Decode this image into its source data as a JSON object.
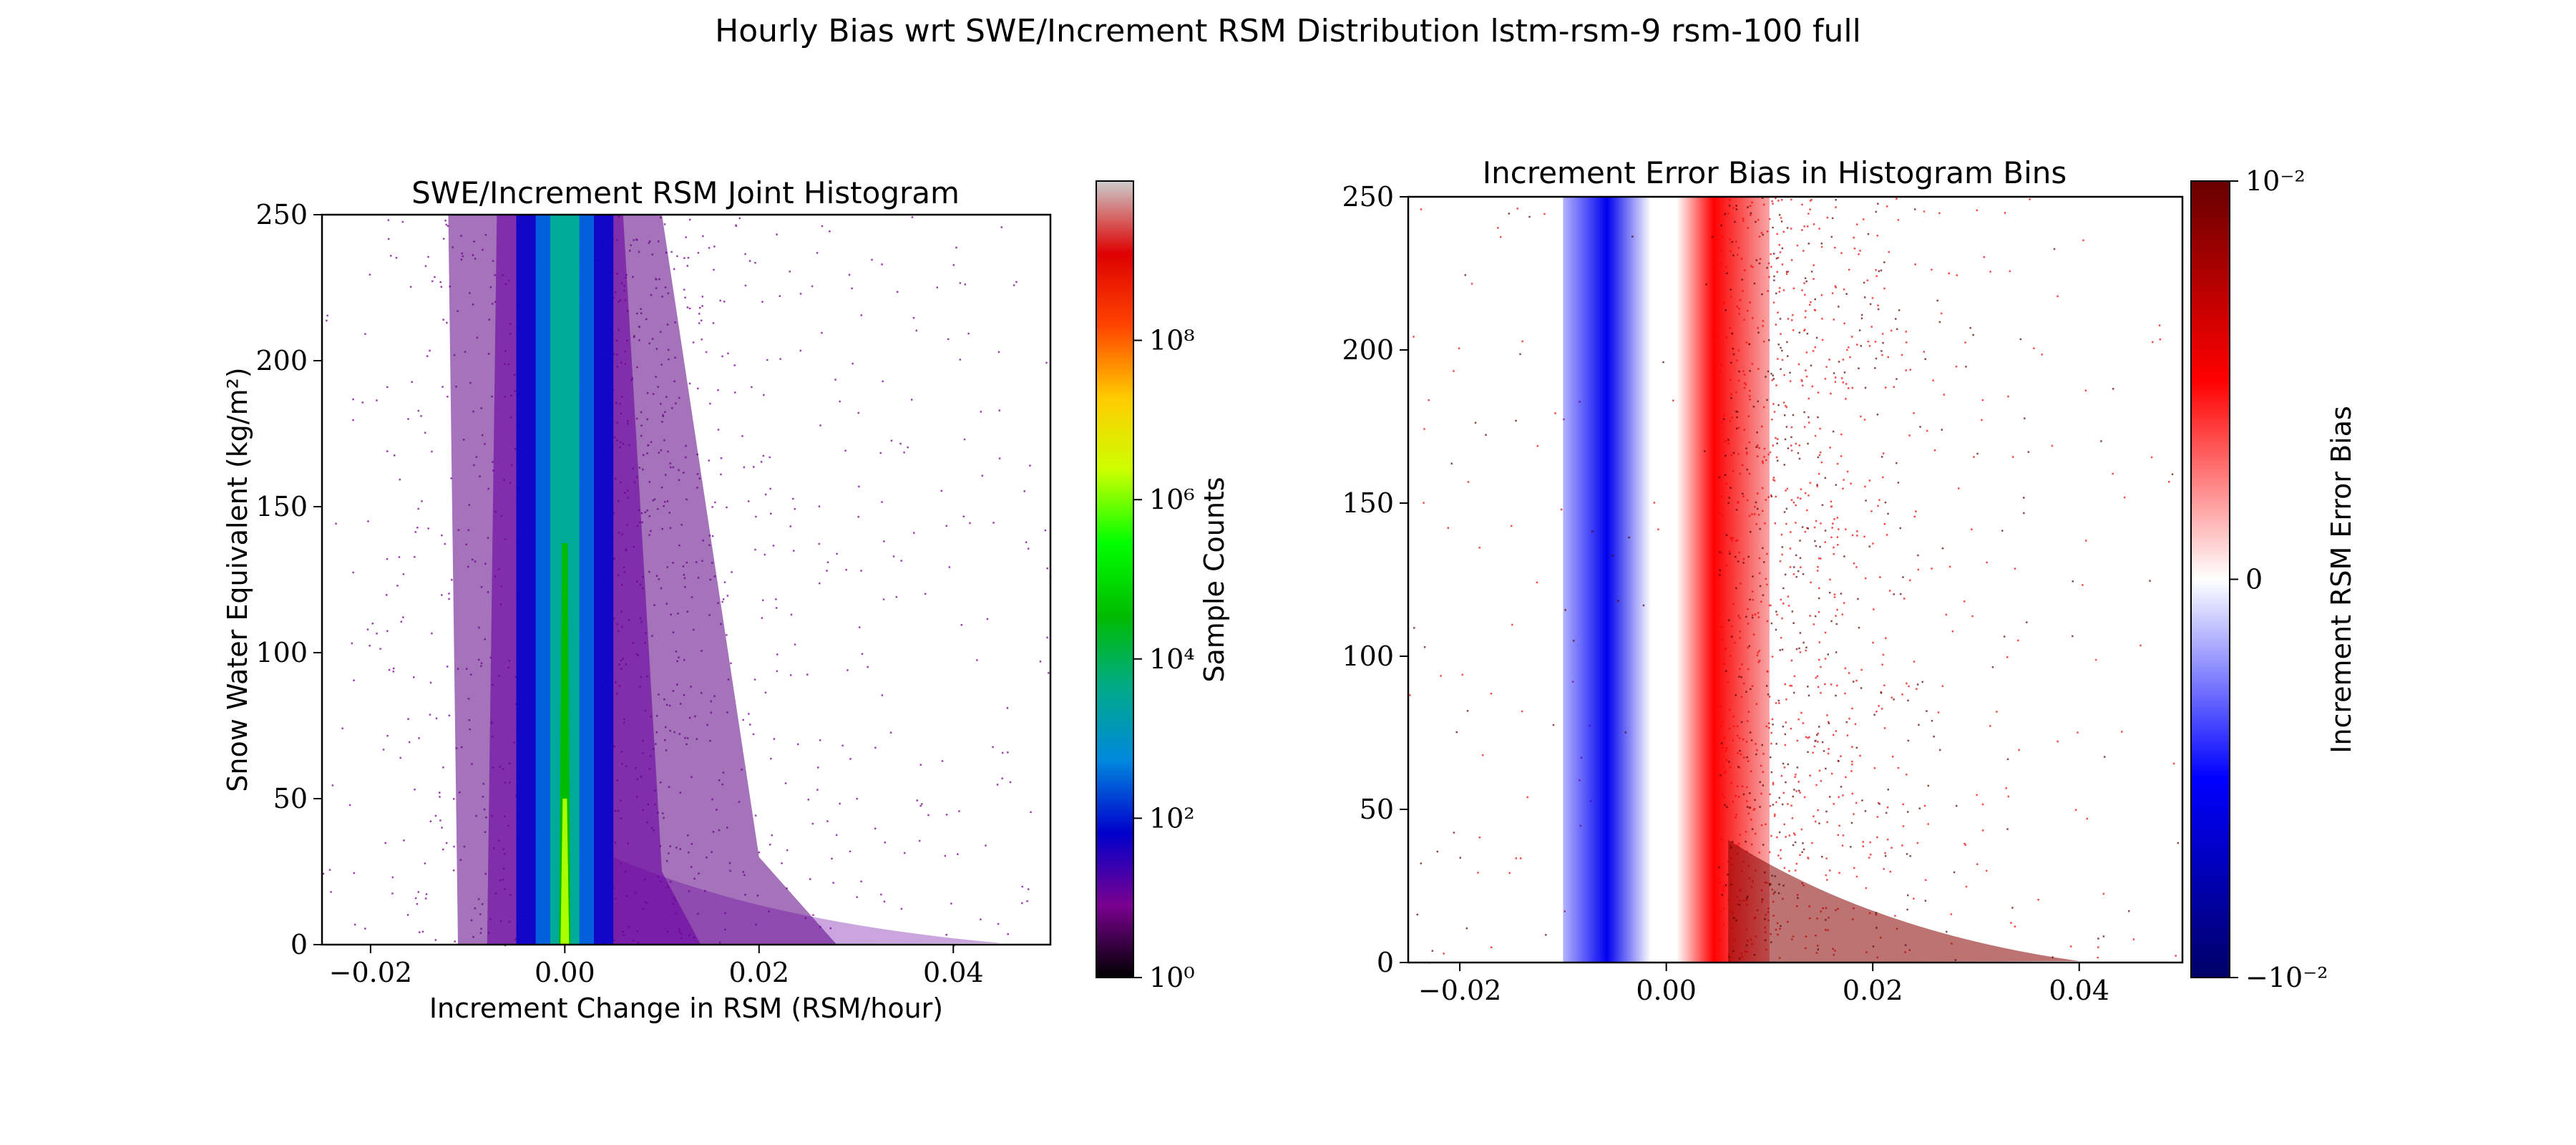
{
  "figure": {
    "suptitle": "Hourly Bias wrt SWE/Increment RSM Distribution lstm-rsm-9 rsm-100 full"
  },
  "chart_data": [
    {
      "type": "heatmap",
      "title": "SWE/Increment RSM Joint Histogram",
      "xlabel": "Increment Change in RSM (RSM/hour)",
      "ylabel": "Snow Water Equivalent (kg/m²)",
      "xlim": [
        -0.025,
        0.05
      ],
      "ylim": [
        0,
        250
      ],
      "xticks": [
        "−0.02",
        "0.00",
        "0.02",
        "0.04"
      ],
      "xtick_values": [
        -0.02,
        0.0,
        0.02,
        0.04
      ],
      "yticks": [
        "0",
        "50",
        "100",
        "150",
        "200",
        "250"
      ],
      "ytick_values": [
        0,
        50,
        100,
        150,
        200,
        250
      ],
      "colorbar": {
        "label": "Sample Counts",
        "scale": "log",
        "range": [
          1,
          10000000000
        ],
        "ticks": [
          "10⁰",
          "10²",
          "10⁴",
          "10⁶",
          "10⁸"
        ],
        "tick_exponents": [
          0,
          2,
          4,
          6,
          8
        ],
        "colormap": "nipy_spectral",
        "colors": [
          "#000000",
          "#7a0090",
          "#0000cc",
          "#0088dd",
          "#00aa88",
          "#00bb00",
          "#00ff00",
          "#ccff00",
          "#ffcc00",
          "#ff4400",
          "#dd0000",
          "#cccccc"
        ]
      },
      "distribution": {
        "center_x": 0.0,
        "core_halfwidth": 0.0015,
        "blue_band": [
          -0.005,
          0.005
        ],
        "purple_band": [
          -0.012,
          0.01
        ],
        "sparse_tail_max_x": 0.045,
        "low_swe_spread_max_x": 0.03
      },
      "grid": false
    },
    {
      "type": "heatmap",
      "title": "Increment Error Bias in Histogram Bins",
      "xlabel": "",
      "ylabel": "",
      "xlim": [
        -0.025,
        0.05
      ],
      "ylim": [
        0,
        250
      ],
      "xticks": [
        "−0.02",
        "0.00",
        "0.02",
        "0.04"
      ],
      "xtick_values": [
        -0.02,
        0.0,
        0.02,
        0.04
      ],
      "yticks": [
        "0",
        "50",
        "100",
        "150",
        "200",
        "250"
      ],
      "ytick_values": [
        0,
        50,
        100,
        150,
        200,
        250
      ],
      "colorbar": {
        "label": "Increment RSM Error Bias",
        "scale": "symlog",
        "range": [
          -0.01,
          0.01
        ],
        "ticks": [
          "10⁻²",
          "0",
          "−10⁻²"
        ],
        "tick_values": [
          0.01,
          0,
          -0.01
        ],
        "colormap": "seismic_r",
        "colors": [
          "#660000",
          "#ff0000",
          "#ffffff",
          "#0000ff",
          "#000066"
        ]
      },
      "distribution": {
        "blue_band": [
          -0.01,
          -0.0015
        ],
        "white_band": [
          -0.0015,
          0.001
        ],
        "red_band": [
          0.001,
          0.01
        ],
        "dark_red_low_swe_max_x": 0.03
      },
      "grid": false
    }
  ]
}
